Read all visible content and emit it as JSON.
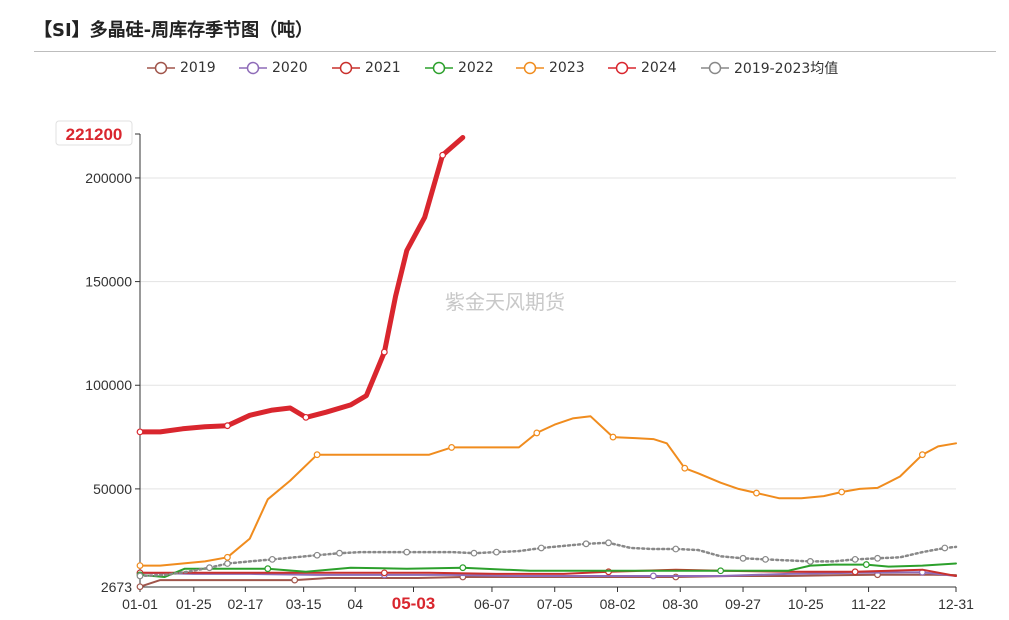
{
  "header": {
    "title": "【SI】多晶硅-周库存季节图（吨）"
  },
  "watermark": "紫金天风期货",
  "chart_data": {
    "type": "line",
    "title": "【SI】多晶硅-周库存季节图（吨）",
    "xlabel": "",
    "ylabel": "",
    "y_ticks": [
      {
        "value": 200000,
        "label": "200000"
      },
      {
        "value": 150000,
        "label": "150000"
      },
      {
        "value": 100000,
        "label": "100000"
      },
      {
        "value": 50000,
        "label": "50000"
      }
    ],
    "ylim": [
      2673,
      221200
    ],
    "y_min_label": "2673",
    "y_max_label": "221200",
    "x_ticks": [
      {
        "day": 1,
        "label": "01-01"
      },
      {
        "day": 25,
        "label": "01-25"
      },
      {
        "day": 48,
        "label": "02-17"
      },
      {
        "day": 74,
        "label": "03-15"
      },
      {
        "day": 97,
        "label": "04"
      },
      {
        "day": 123,
        "label": "05-03",
        "highlight": true
      },
      {
        "day": 158,
        "label": "06-07"
      },
      {
        "day": 186,
        "label": "07-05"
      },
      {
        "day": 214,
        "label": "08-02"
      },
      {
        "day": 242,
        "label": "08-30"
      },
      {
        "day": 270,
        "label": "09-27"
      },
      {
        "day": 298,
        "label": "10-25"
      },
      {
        "day": 326,
        "label": "11-22"
      },
      {
        "day": 365,
        "label": "12-31"
      }
    ],
    "xlim_day": [
      1,
      365
    ],
    "grid": true,
    "legend_position": "top",
    "series": [
      {
        "name": "2019",
        "color": "#a0554b",
        "width": 2,
        "x": [
          1,
          10,
          29,
          59,
          70,
          85,
          105,
          125,
          145,
          175,
          195,
          215,
          240,
          265,
          290,
          310,
          330,
          355,
          365
        ],
        "y": [
          2800,
          6000,
          6000,
          6000,
          6000,
          7000,
          7000,
          7000,
          7500,
          7500,
          7500,
          7500,
          7500,
          8000,
          8000,
          8300,
          8600,
          8600,
          8400
        ]
      },
      {
        "name": "2020",
        "color": "#8e6bb8",
        "width": 2,
        "x": [
          1,
          25,
          50,
          80,
          110,
          140,
          170,
          200,
          230,
          260,
          290,
          320,
          350,
          365
        ],
        "y": [
          9500,
          9000,
          9000,
          8500,
          8500,
          8500,
          8000,
          8000,
          8000,
          8000,
          9000,
          9500,
          9800,
          8000
        ]
      },
      {
        "name": "2021",
        "color": "#c9302c",
        "width": 2,
        "x": [
          1,
          25,
          50,
          80,
          110,
          130,
          160,
          190,
          210,
          240,
          260,
          290,
          320,
          350,
          365
        ],
        "y": [
          9500,
          9500,
          9500,
          9500,
          9500,
          9500,
          9000,
          9000,
          10000,
          11000,
          10500,
          10000,
          10000,
          11000,
          8000
        ]
      },
      {
        "name": "2022",
        "color": "#2ca02c",
        "width": 2,
        "x": [
          1,
          12,
          21,
          40,
          58,
          75,
          95,
          120,
          145,
          175,
          200,
          230,
          260,
          290,
          300,
          310,
          325,
          335,
          350,
          365
        ],
        "y": [
          8500,
          7500,
          11500,
          11500,
          11500,
          10000,
          12000,
          11500,
          12000,
          10500,
          10500,
          10500,
          10500,
          10500,
          13000,
          13500,
          13500,
          12500,
          13000,
          14000
        ]
      },
      {
        "name": "2023",
        "color": "#f08c1e",
        "width": 2,
        "x": [
          1,
          10,
          20,
          30,
          40,
          50,
          58,
          68,
          80,
          95,
          110,
          130,
          140,
          150,
          160,
          170,
          178,
          186,
          194,
          202,
          212,
          222,
          230,
          236,
          244,
          250,
          260,
          268,
          276,
          286,
          296,
          306,
          314,
          322,
          330,
          340,
          350,
          357,
          365
        ],
        "y": [
          13000,
          13000,
          14000,
          15000,
          17000,
          26000,
          45000,
          54000,
          66500,
          66500,
          66500,
          66500,
          70000,
          70000,
          70000,
          70000,
          77000,
          81000,
          84000,
          85000,
          75000,
          74500,
          74000,
          72000,
          60000,
          57500,
          53000,
          50000,
          48000,
          45500,
          45500,
          46500,
          48500,
          50000,
          50500,
          56000,
          66500,
          70500,
          72000
        ]
      },
      {
        "name": "2024",
        "color": "#d9262e",
        "width": 5,
        "x": [
          1,
          10,
          20,
          30,
          40,
          50,
          60,
          68,
          75,
          84,
          95,
          102,
          110,
          115,
          120,
          128,
          136,
          145
        ],
        "y": [
          77500,
          77500,
          79000,
          80000,
          80500,
          85500,
          88000,
          89000,
          84500,
          87000,
          90500,
          95000,
          116000,
          143000,
          165000,
          181000,
          211000,
          219500
        ]
      },
      {
        "name": "2019-2023均值",
        "color": "#888888",
        "width": 2.5,
        "dashed": true,
        "x": [
          1,
          12,
          22,
          32,
          40,
          50,
          60,
          70,
          80,
          90,
          100,
          110,
          120,
          130,
          140,
          150,
          160,
          170,
          180,
          190,
          200,
          210,
          220,
          230,
          240,
          250,
          260,
          270,
          280,
          290,
          300,
          310,
          320,
          330,
          340,
          350,
          360,
          365
        ],
        "y": [
          8000,
          8500,
          10000,
          12000,
          14000,
          15000,
          16000,
          17000,
          18000,
          19000,
          19500,
          19500,
          19500,
          19500,
          19500,
          19000,
          19500,
          20000,
          21500,
          22500,
          23500,
          24000,
          21500,
          21000,
          21000,
          20500,
          17500,
          16500,
          16000,
          15500,
          15000,
          15000,
          16000,
          16500,
          17000,
          19500,
          21500,
          22000
        ]
      }
    ]
  }
}
